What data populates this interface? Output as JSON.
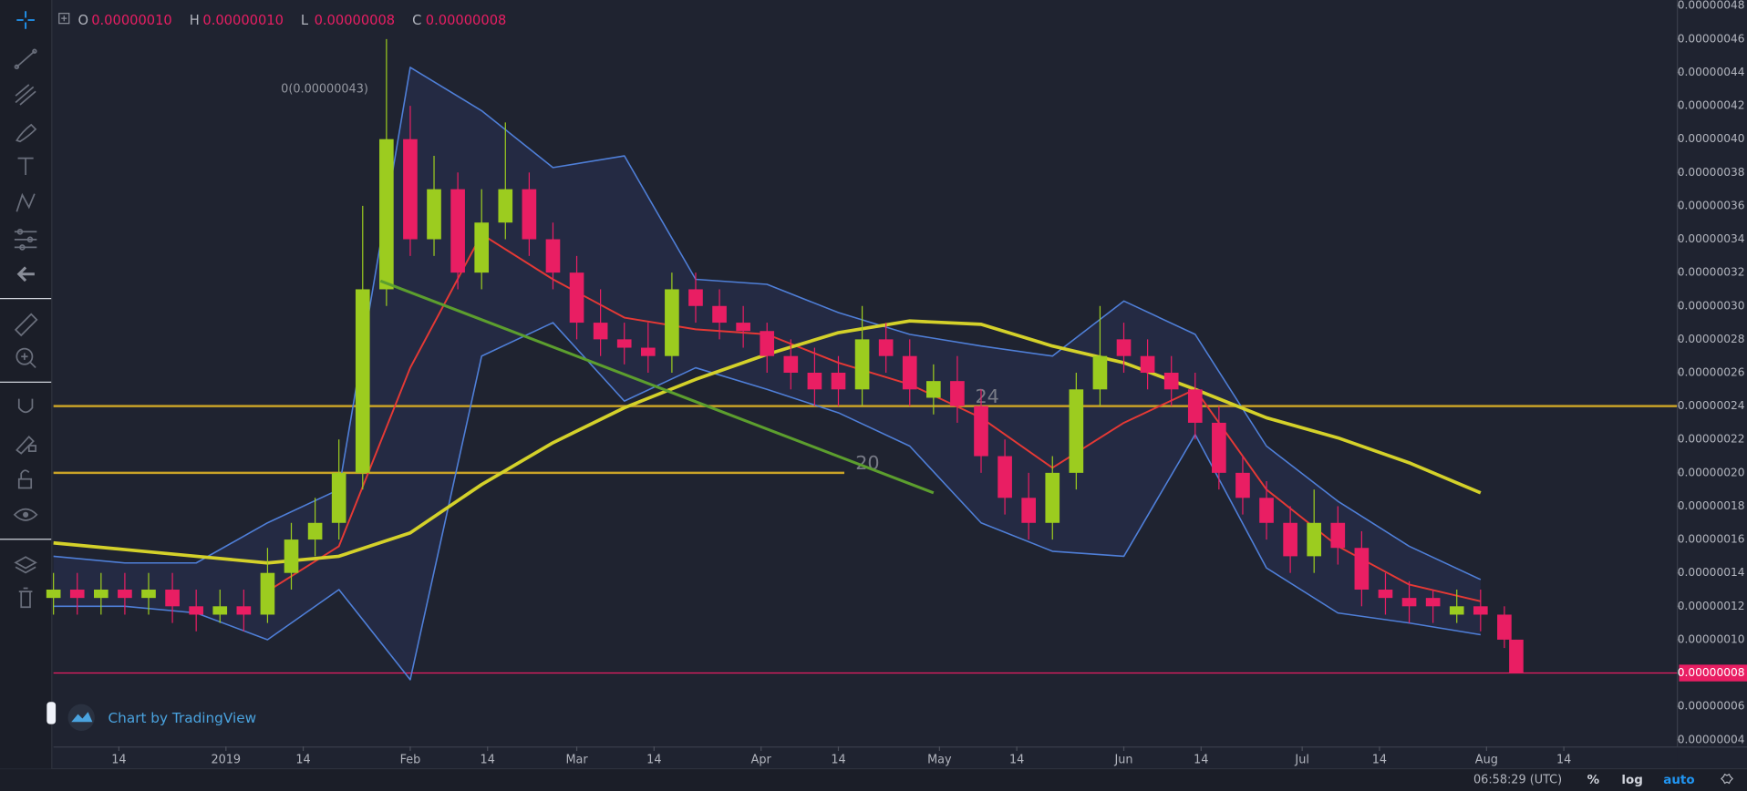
{
  "chart_data": {
    "type": "candlestick",
    "legend": [
      {
        "key": "O",
        "value": "0.00000010"
      },
      {
        "key": "H",
        "value": "0.00000010"
      },
      {
        "key": "L",
        "value": "0.00000008"
      },
      {
        "key": "C",
        "value": "0.00000008"
      }
    ],
    "up_color": "#9ccc1f",
    "down_color": "#e91e63",
    "grid": false,
    "xlim": [
      0,
      273
    ],
    "ylim": [
      3.6e-08,
      4.834e-07
    ],
    "x": [
      0,
      4,
      8,
      12,
      16,
      20,
      24,
      28,
      32,
      36,
      40,
      44,
      48,
      52,
      56,
      60,
      64,
      68,
      72,
      76,
      80,
      84,
      88,
      92,
      96,
      100,
      104,
      108,
      112,
      116,
      120,
      124,
      128,
      132,
      136,
      140,
      144,
      148,
      152,
      156,
      160,
      164,
      168,
      172,
      176,
      180,
      184,
      188,
      192,
      196,
      200,
      204,
      208,
      212,
      216,
      220,
      224,
      228,
      232,
      236,
      240,
      244,
      246
    ],
    "open": [
      1.25e-07,
      1.3e-07,
      1.25e-07,
      1.3e-07,
      1.25e-07,
      1.3e-07,
      1.2e-07,
      1.15e-07,
      1.2e-07,
      1.15e-07,
      1.4e-07,
      1.6e-07,
      1.7e-07,
      2e-07,
      3.1e-07,
      4e-07,
      3.4e-07,
      3.7e-07,
      3.2e-07,
      3.5e-07,
      3.7e-07,
      3.4e-07,
      3.2e-07,
      2.9e-07,
      2.8e-07,
      2.75e-07,
      2.7e-07,
      3.1e-07,
      3e-07,
      2.9e-07,
      2.85e-07,
      2.7e-07,
      2.6e-07,
      2.6e-07,
      2.5e-07,
      2.8e-07,
      2.7e-07,
      2.45e-07,
      2.55e-07,
      2.4e-07,
      2.1e-07,
      1.85e-07,
      1.7e-07,
      2e-07,
      2.5e-07,
      2.8e-07,
      2.7e-07,
      2.6e-07,
      2.5e-07,
      2.3e-07,
      2e-07,
      1.85e-07,
      1.7e-07,
      1.5e-07,
      1.7e-07,
      1.55e-07,
      1.3e-07,
      1.25e-07,
      1.25e-07,
      1.15e-07,
      1.2e-07,
      1.15e-07,
      1e-07
    ],
    "high": [
      1.4e-07,
      1.4e-07,
      1.4e-07,
      1.4e-07,
      1.4e-07,
      1.4e-07,
      1.3e-07,
      1.3e-07,
      1.3e-07,
      1.55e-07,
      1.7e-07,
      1.85e-07,
      2.2e-07,
      3.6e-07,
      4.6e-07,
      4.2e-07,
      3.9e-07,
      3.8e-07,
      3.7e-07,
      4.1e-07,
      3.8e-07,
      3.5e-07,
      3.3e-07,
      3.1e-07,
      2.9e-07,
      2.9e-07,
      3.2e-07,
      3.2e-07,
      3.1e-07,
      3e-07,
      2.9e-07,
      2.8e-07,
      2.75e-07,
      2.7e-07,
      3e-07,
      2.9e-07,
      2.8e-07,
      2.65e-07,
      2.7e-07,
      2.5e-07,
      2.2e-07,
      2e-07,
      2.1e-07,
      2.6e-07,
      3e-07,
      2.9e-07,
      2.8e-07,
      2.7e-07,
      2.6e-07,
      2.4e-07,
      2.1e-07,
      1.95e-07,
      1.8e-07,
      1.9e-07,
      1.8e-07,
      1.65e-07,
      1.4e-07,
      1.35e-07,
      1.3e-07,
      1.3e-07,
      1.3e-07,
      1.2e-07,
      1e-07
    ],
    "low": [
      1.15e-07,
      1.15e-07,
      1.15e-07,
      1.15e-07,
      1.15e-07,
      1.1e-07,
      1.05e-07,
      1.1e-07,
      1.05e-07,
      1.1e-07,
      1.3e-07,
      1.5e-07,
      1.6e-07,
      1.9e-07,
      3e-07,
      3.3e-07,
      3.3e-07,
      3.1e-07,
      3.1e-07,
      3.4e-07,
      3.3e-07,
      3.1e-07,
      2.8e-07,
      2.7e-07,
      2.65e-07,
      2.6e-07,
      2.6e-07,
      2.9e-07,
      2.8e-07,
      2.75e-07,
      2.6e-07,
      2.5e-07,
      2.4e-07,
      2.4e-07,
      2.4e-07,
      2.6e-07,
      2.4e-07,
      2.35e-07,
      2.3e-07,
      2e-07,
      1.75e-07,
      1.6e-07,
      1.6e-07,
      1.9e-07,
      2.4e-07,
      2.6e-07,
      2.5e-07,
      2.4e-07,
      2.2e-07,
      1.9e-07,
      1.75e-07,
      1.6e-07,
      1.4e-07,
      1.4e-07,
      1.45e-07,
      1.2e-07,
      1.15e-07,
      1.1e-07,
      1.1e-07,
      1.1e-07,
      1.05e-07,
      9.5e-08,
      8e-08
    ],
    "close": [
      1.3e-07,
      1.25e-07,
      1.3e-07,
      1.25e-07,
      1.3e-07,
      1.2e-07,
      1.15e-07,
      1.2e-07,
      1.15e-07,
      1.4e-07,
      1.6e-07,
      1.7e-07,
      2e-07,
      3.1e-07,
      4e-07,
      3.4e-07,
      3.7e-07,
      3.2e-07,
      3.5e-07,
      3.7e-07,
      3.4e-07,
      3.2e-07,
      2.9e-07,
      2.8e-07,
      2.75e-07,
      2.7e-07,
      3.1e-07,
      3e-07,
      2.9e-07,
      2.85e-07,
      2.7e-07,
      2.6e-07,
      2.5e-07,
      2.5e-07,
      2.8e-07,
      2.7e-07,
      2.5e-07,
      2.55e-07,
      2.4e-07,
      2.1e-07,
      1.85e-07,
      1.7e-07,
      2e-07,
      2.5e-07,
      2.7e-07,
      2.7e-07,
      2.6e-07,
      2.5e-07,
      2.3e-07,
      2e-07,
      1.85e-07,
      1.7e-07,
      1.5e-07,
      1.7e-07,
      1.55e-07,
      1.3e-07,
      1.25e-07,
      1.2e-07,
      1.2e-07,
      1.2e-07,
      1.15e-07,
      1e-07,
      8e-08
    ],
    "band_fill": "rgba(70,90,200,0.13)",
    "lines": [
      {
        "color": "#4f7fd8",
        "width": 1.3,
        "x": [
          0,
          12,
          24,
          36,
          48,
          60,
          72,
          84,
          96,
          108,
          120,
          132,
          144,
          156,
          168,
          180,
          192,
          204,
          216,
          228,
          240,
          252
        ],
        "values": [
          1.5e-07,
          1.46e-07,
          1.46e-07,
          1.7e-07,
          1.9e-07,
          4.43e-07,
          4.17e-07,
          3.83e-07,
          3.9e-07,
          3.16e-07,
          3.13e-07,
          2.96e-07,
          2.83e-07,
          2.76e-07,
          2.7e-07,
          3.03e-07,
          2.83e-07,
          2.16e-07,
          1.83e-07,
          1.56e-07,
          1.36e-07,
          null
        ]
      },
      {
        "color": "#4f7fd8",
        "width": 1.3,
        "x": [
          0,
          12,
          24,
          36,
          48,
          60,
          72,
          84,
          96,
          108,
          120,
          132,
          144,
          156,
          168,
          180,
          192,
          204,
          216,
          228,
          240,
          252
        ],
        "values": [
          1.2e-07,
          1.2e-07,
          1.16e-07,
          1e-07,
          1.3e-07,
          7.6e-08,
          2.7e-07,
          2.9e-07,
          2.43e-07,
          2.63e-07,
          2.5e-07,
          2.36e-07,
          2.16e-07,
          1.7e-07,
          1.53e-07,
          1.5e-07,
          2.23e-07,
          1.43e-07,
          1.16e-07,
          1.1e-07,
          1.03e-07,
          null
        ]
      },
      {
        "color": "#e53935",
        "width": 1.6,
        "x": [
          0,
          12,
          24,
          36,
          48,
          60,
          72,
          84,
          96,
          108,
          120,
          132,
          144,
          156,
          168,
          180,
          192,
          204,
          216,
          228,
          240,
          252
        ],
        "values": [
          null,
          null,
          null,
          1.29e-07,
          1.56e-07,
          2.63e-07,
          3.43e-07,
          3.16e-07,
          2.93e-07,
          2.86e-07,
          2.83e-07,
          2.66e-07,
          2.53e-07,
          2.33e-07,
          2.03e-07,
          2.3e-07,
          2.5e-07,
          1.9e-07,
          1.56e-07,
          1.33e-07,
          1.23e-07,
          null
        ]
      },
      {
        "color": "#d4d12a",
        "width": 3,
        "x": [
          0,
          12,
          24,
          36,
          48,
          60,
          72,
          84,
          96,
          108,
          120,
          132,
          144,
          156,
          168,
          180,
          192,
          204,
          216,
          228,
          240,
          252
        ],
        "values": [
          1.58e-07,
          1.54e-07,
          1.5e-07,
          1.46e-07,
          1.5e-07,
          1.64e-07,
          1.93e-07,
          2.18e-07,
          2.39e-07,
          2.56e-07,
          2.71e-07,
          2.84e-07,
          2.91e-07,
          2.89e-07,
          2.76e-07,
          2.66e-07,
          2.5e-07,
          2.33e-07,
          2.21e-07,
          2.06e-07,
          1.88e-07,
          null
        ]
      }
    ],
    "levels": [
      {
        "label": "24",
        "value": 2.4e-07,
        "x": [
          0,
          273
        ],
        "color": "#c9a227"
      },
      {
        "label": "20",
        "value": 2e-07,
        "x": [
          0,
          133
        ],
        "color": "#c9a227"
      }
    ],
    "trend_line": {
      "x": [
        55,
        148
      ],
      "values": [
        3.15e-07,
        1.88e-07
      ],
      "color": "#5c9e2e"
    },
    "annotation": {
      "label": "0(0.00000043)",
      "value": 4.3e-07,
      "x": 52
    },
    "price_line": {
      "label": "0.00000008",
      "value": 8e-08,
      "color": "#e91e63"
    },
    "xticks": [
      {
        "value": 11,
        "label": "14"
      },
      {
        "value": 29,
        "label": "2019"
      },
      {
        "value": 42,
        "label": "14"
      },
      {
        "value": 60,
        "label": "Feb"
      },
      {
        "value": 73,
        "label": "14"
      },
      {
        "value": 88,
        "label": "Mar"
      },
      {
        "value": 101,
        "label": "14"
      },
      {
        "value": 119,
        "label": "Apr"
      },
      {
        "value": 132,
        "label": "14"
      },
      {
        "value": 149,
        "label": "May"
      },
      {
        "value": 162,
        "label": "14"
      },
      {
        "value": 180,
        "label": "Jun"
      },
      {
        "value": 193,
        "label": "14"
      },
      {
        "value": 210,
        "label": "Jul"
      },
      {
        "value": 223,
        "label": "14"
      },
      {
        "value": 241,
        "label": "Aug"
      },
      {
        "value": 254,
        "label": "14"
      }
    ],
    "yticks": [
      {
        "value": 4e-08,
        "label": "0.00000004"
      },
      {
        "value": 6e-08,
        "label": "0.00000006"
      },
      {
        "value": 8e-08,
        "label": "0.00000008"
      },
      {
        "value": 1e-07,
        "label": "0.00000010"
      },
      {
        "value": 1.2e-07,
        "label": "0.00000012"
      },
      {
        "value": 1.4e-07,
        "label": "0.00000014"
      },
      {
        "value": 1.6e-07,
        "label": "0.00000016"
      },
      {
        "value": 1.8e-07,
        "label": "0.00000018"
      },
      {
        "value": 2e-07,
        "label": "0.00000020"
      },
      {
        "value": 2.2e-07,
        "label": "0.00000022"
      },
      {
        "value": 2.4e-07,
        "label": "0.00000024"
      },
      {
        "value": 2.6e-07,
        "label": "0.00000026"
      },
      {
        "value": 2.8e-07,
        "label": "0.00000028"
      },
      {
        "value": 3e-07,
        "label": "0.00000030"
      },
      {
        "value": 3.2e-07,
        "label": "0.00000032"
      },
      {
        "value": 3.4e-07,
        "label": "0.00000034"
      },
      {
        "value": 3.6e-07,
        "label": "0.00000036"
      },
      {
        "value": 3.8e-07,
        "label": "0.00000038"
      },
      {
        "value": 4e-07,
        "label": "0.00000040"
      },
      {
        "value": 4.2e-07,
        "label": "0.00000042"
      },
      {
        "value": 4.4e-07,
        "label": "0.00000044"
      },
      {
        "value": 4.6e-07,
        "label": "0.00000046"
      },
      {
        "value": 4.8e-07,
        "label": "0.00000048"
      }
    ],
    "watermark": "Chart by TradingView"
  },
  "status_bar": {
    "time": "06:58:29 (UTC)",
    "percent": "%",
    "log": "log",
    "auto": "auto"
  }
}
